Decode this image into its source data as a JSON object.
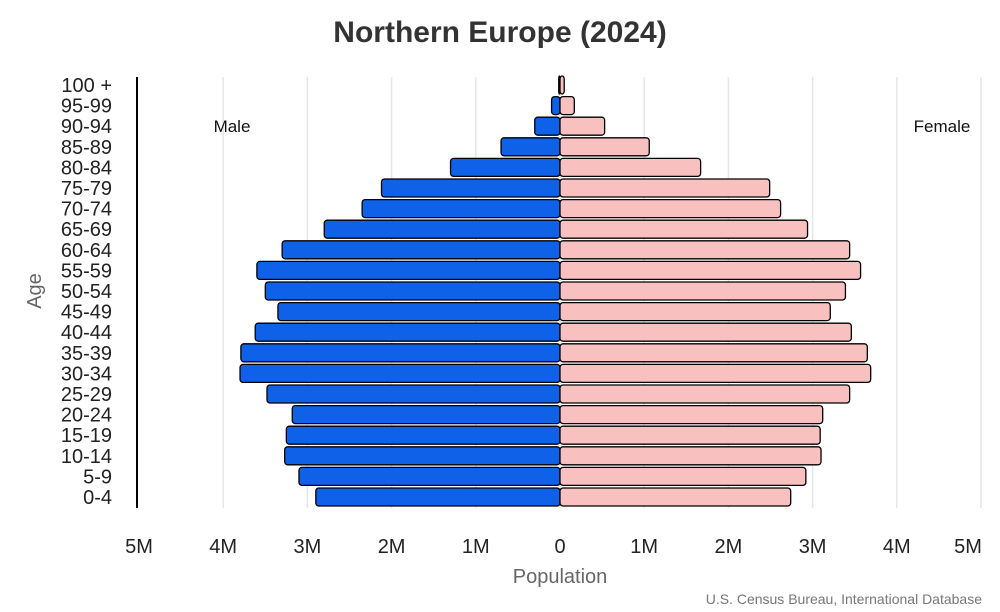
{
  "chart_data": {
    "type": "bar",
    "orientation": "horizontal-population-pyramid",
    "title": "Northern Europe (2024)",
    "xlabel": "Population",
    "ylabel": "Age",
    "source": "U.S. Census Bureau, International Database",
    "side_labels": {
      "left": "Male",
      "right": "Female"
    },
    "categories": [
      "0-4",
      "5-9",
      "10-14",
      "15-19",
      "20-24",
      "25-29",
      "30-34",
      "35-39",
      "40-44",
      "45-49",
      "50-54",
      "55-59",
      "60-64",
      "65-69",
      "70-74",
      "75-79",
      "80-84",
      "85-89",
      "90-94",
      "95-99",
      "100 +"
    ],
    "series": [
      {
        "name": "Male",
        "color": "#0f62e8",
        "values": [
          2900000,
          3100000,
          3270000,
          3250000,
          3180000,
          3480000,
          3800000,
          3790000,
          3620000,
          3350000,
          3500000,
          3600000,
          3300000,
          2800000,
          2350000,
          2120000,
          1300000,
          700000,
          300000,
          100000,
          15000
        ]
      },
      {
        "name": "Female",
        "color": "#f9c0c0",
        "values": [
          2740000,
          2920000,
          3100000,
          3090000,
          3120000,
          3440000,
          3690000,
          3650000,
          3460000,
          3210000,
          3390000,
          3570000,
          3440000,
          2940000,
          2620000,
          2490000,
          1670000,
          1060000,
          530000,
          170000,
          50000
        ]
      }
    ],
    "xlim": [
      -5000000,
      5000000
    ],
    "ticks": [
      {
        "value": -5000000,
        "label": "5M"
      },
      {
        "value": -4000000,
        "label": "4M"
      },
      {
        "value": -3000000,
        "label": "3M"
      },
      {
        "value": -2000000,
        "label": "2M"
      },
      {
        "value": -1000000,
        "label": "1M"
      },
      {
        "value": 0,
        "label": "0"
      },
      {
        "value": 1000000,
        "label": "1M"
      },
      {
        "value": 2000000,
        "label": "2M"
      },
      {
        "value": 3000000,
        "label": "3M"
      },
      {
        "value": 4000000,
        "label": "4M"
      },
      {
        "value": 5000000,
        "label": "5M"
      }
    ],
    "grid": true,
    "bar_outline_color": "#000000",
    "grid_color": "#e6e6e6"
  }
}
